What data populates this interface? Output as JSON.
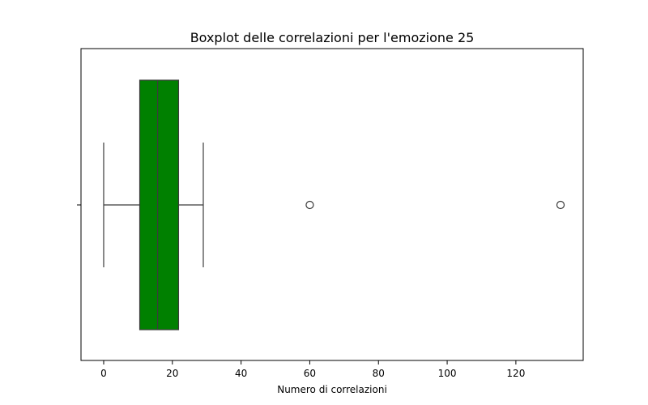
{
  "chart_data": {
    "type": "boxplot",
    "orientation": "horizontal",
    "title": "Boxplot delle correlazioni per l'emozione 25",
    "xlabel": "Numero di correlazioni",
    "ylabel": "",
    "xlim": [
      -6.6,
      139.6
    ],
    "xticks": [
      0,
      20,
      40,
      60,
      80,
      100,
      120
    ],
    "xtick_labels": [
      "0",
      "20",
      "40",
      "60",
      "80",
      "100",
      "120"
    ],
    "box": {
      "whisker_low": 0,
      "q1": 10.5,
      "median": 15.7,
      "q3": 21.8,
      "whisker_high": 29,
      "fill_color": "#008000",
      "line_color": "#3b3b3b"
    },
    "outliers": [
      60,
      133
    ],
    "grid": false,
    "legend": "none"
  }
}
